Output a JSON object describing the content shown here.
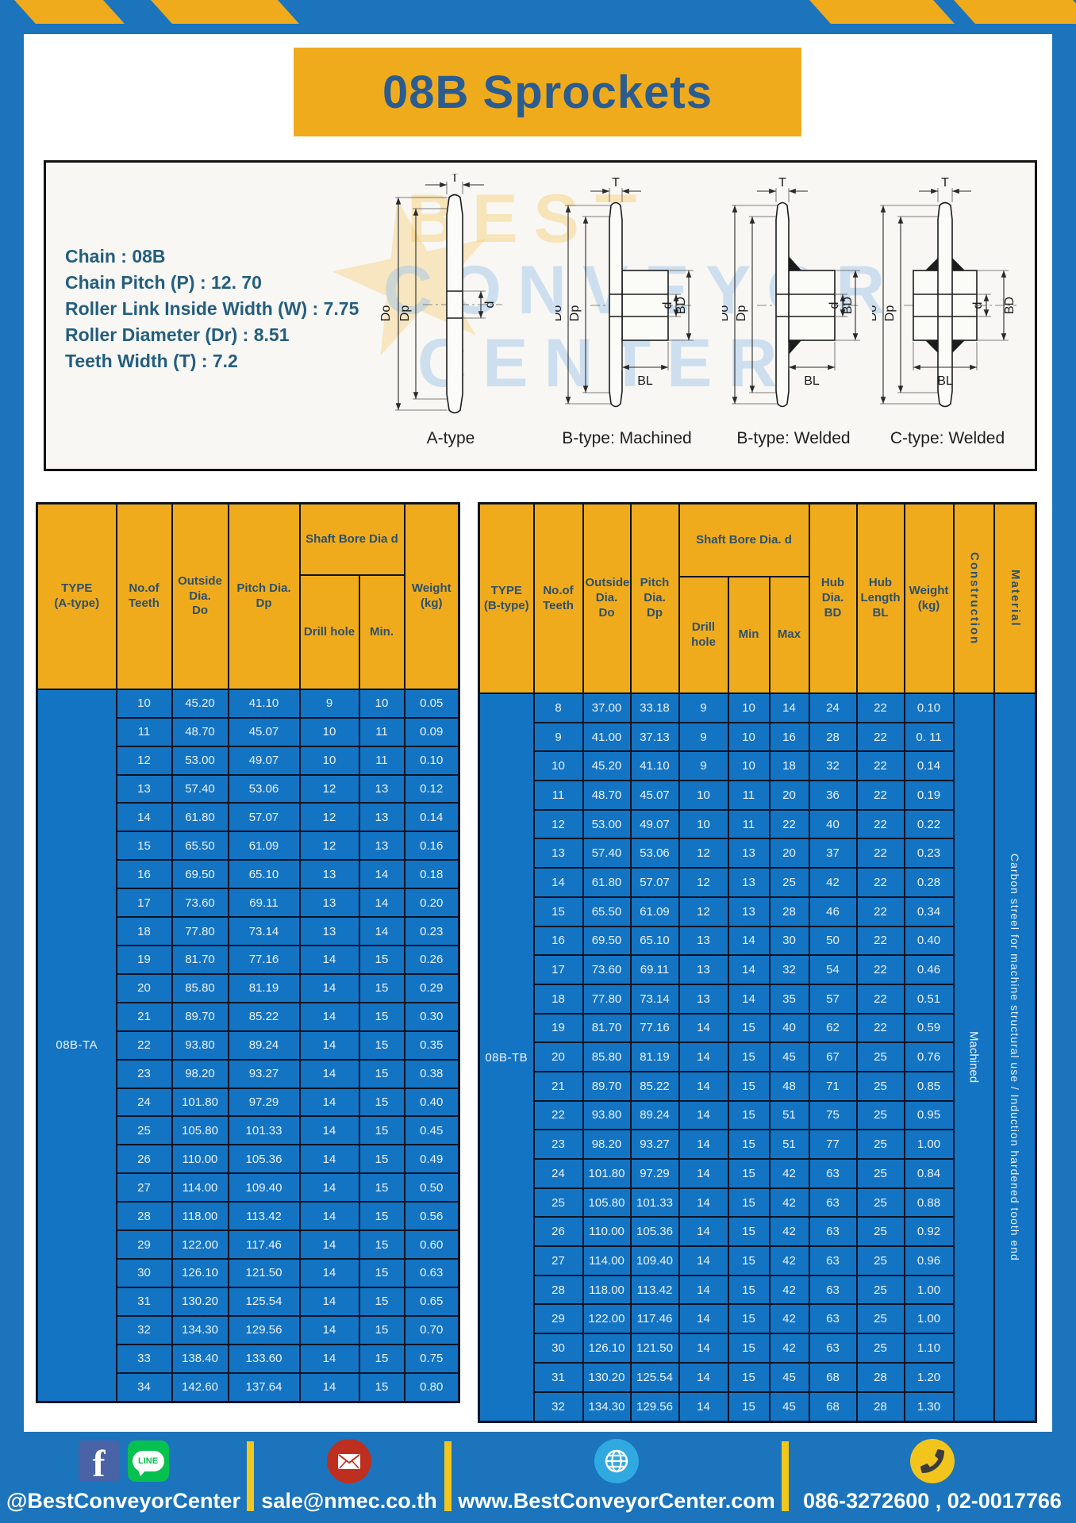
{
  "page": {
    "title": "08B Sprockets"
  },
  "specs": {
    "lines": [
      "Chain  : 08B",
      "Chain Pitch (P)  :  12. 70",
      "Roller Link Inside Width (W)  :  7.75",
      "Roller Diameter (Dr)  : 8.51",
      "Teeth Width (T)  :  7.2"
    ]
  },
  "diagram": {
    "watermark": [
      "BEST",
      "CONVEYOR",
      "CENTER"
    ],
    "watermark_star": "★",
    "types": [
      {
        "label": "A-type"
      },
      {
        "label": "B-type: Machined"
      },
      {
        "label": "B-type: Welded"
      },
      {
        "label": "C-type: Welded"
      }
    ],
    "dims": {
      "T": "T",
      "Do": "Do",
      "Dp": "Dp",
      "d": "d",
      "BD": "BD",
      "BL": "BL"
    }
  },
  "table_a": {
    "type_label": "08B-TA",
    "headers": {
      "type": "TYPE\n(A-type)",
      "teeth": "No.of\nTeeth",
      "outside": "Outside\nDia.\nDo",
      "pitch": "Pitch Dia.\nDp",
      "shaft_bore": "Shaft Bore Dia d",
      "drill": "Drill hole",
      "min": "Min.",
      "weight": "Weight\n(kg)"
    },
    "rows": [
      [
        "10",
        "45.20",
        "41.10",
        "9",
        "10",
        "0.05"
      ],
      [
        "11",
        "48.70",
        "45.07",
        "10",
        "11",
        "0.09"
      ],
      [
        "12",
        "53.00",
        "49.07",
        "10",
        "11",
        "0.10"
      ],
      [
        "13",
        "57.40",
        "53.06",
        "12",
        "13",
        "0.12"
      ],
      [
        "14",
        "61.80",
        "57.07",
        "12",
        "13",
        "0.14"
      ],
      [
        "15",
        "65.50",
        "61.09",
        "12",
        "13",
        "0.16"
      ],
      [
        "16",
        "69.50",
        "65.10",
        "13",
        "14",
        "0.18"
      ],
      [
        "17",
        "73.60",
        "69.11",
        "13",
        "14",
        "0.20"
      ],
      [
        "18",
        "77.80",
        "73.14",
        "13",
        "14",
        "0.23"
      ],
      [
        "19",
        "81.70",
        "77.16",
        "14",
        "15",
        "0.26"
      ],
      [
        "20",
        "85.80",
        "81.19",
        "14",
        "15",
        "0.29"
      ],
      [
        "21",
        "89.70",
        "85.22",
        "14",
        "15",
        "0.30"
      ],
      [
        "22",
        "93.80",
        "89.24",
        "14",
        "15",
        "0.35"
      ],
      [
        "23",
        "98.20",
        "93.27",
        "14",
        "15",
        "0.38"
      ],
      [
        "24",
        "101.80",
        "97.29",
        "14",
        "15",
        "0.40"
      ],
      [
        "25",
        "105.80",
        "101.33",
        "14",
        "15",
        "0.45"
      ],
      [
        "26",
        "110.00",
        "105.36",
        "14",
        "15",
        "0.49"
      ],
      [
        "27",
        "114.00",
        "109.40",
        "14",
        "15",
        "0.50"
      ],
      [
        "28",
        "118.00",
        "113.42",
        "14",
        "15",
        "0.56"
      ],
      [
        "29",
        "122.00",
        "117.46",
        "14",
        "15",
        "0.60"
      ],
      [
        "30",
        "126.10",
        "121.50",
        "14",
        "15",
        "0.63"
      ],
      [
        "31",
        "130.20",
        "125.54",
        "14",
        "15",
        "0.65"
      ],
      [
        "32",
        "134.30",
        "129.56",
        "14",
        "15",
        "0.70"
      ],
      [
        "33",
        "138.40",
        "133.60",
        "14",
        "15",
        "0.75"
      ],
      [
        "34",
        "142.60",
        "137.64",
        "14",
        "15",
        "0.80"
      ]
    ]
  },
  "table_b": {
    "type_label": "08B-TB",
    "headers": {
      "type": "TYPE\n(B-type)",
      "teeth": "No.of\nTeeth",
      "outside": "Outside\nDia.\nDo",
      "pitch": "Pitch\nDia.\nDp",
      "shaft_bore": "Shaft Bore Dia.  d",
      "drill": "Drill hole",
      "min": "Min",
      "max": "Max",
      "hub_dia": "Hub\nDia.\nBD",
      "hub_len": "Hub\nLength\nBL",
      "weight": "Weight\n(kg)",
      "construction": "Construction",
      "material": "Material"
    },
    "construction_value": "Machined",
    "material_value": "Carbon streel for machine structural use / Induction hardened tooth end",
    "rows": [
      [
        "8",
        "37.00",
        "33.18",
        "9",
        "10",
        "14",
        "24",
        "22",
        "0.10"
      ],
      [
        "9",
        "41.00",
        "37.13",
        "9",
        "10",
        "16",
        "28",
        "22",
        "0. 11"
      ],
      [
        "10",
        "45.20",
        "41.10",
        "9",
        "10",
        "18",
        "32",
        "22",
        "0.14"
      ],
      [
        "11",
        "48.70",
        "45.07",
        "10",
        "11",
        "20",
        "36",
        "22",
        "0.19"
      ],
      [
        "12",
        "53.00",
        "49.07",
        "10",
        "11",
        "22",
        "40",
        "22",
        "0.22"
      ],
      [
        "13",
        "57.40",
        "53.06",
        "12",
        "13",
        "20",
        "37",
        "22",
        "0.23"
      ],
      [
        "14",
        "61.80",
        "57.07",
        "12",
        "13",
        "25",
        "42",
        "22",
        "0.28"
      ],
      [
        "15",
        "65.50",
        "61.09",
        "12",
        "13",
        "28",
        "46",
        "22",
        "0.34"
      ],
      [
        "16",
        "69.50",
        "65.10",
        "13",
        "14",
        "30",
        "50",
        "22",
        "0.40"
      ],
      [
        "17",
        "73.60",
        "69.11",
        "13",
        "14",
        "32",
        "54",
        "22",
        "0.46"
      ],
      [
        "18",
        "77.80",
        "73.14",
        "13",
        "14",
        "35",
        "57",
        "22",
        "0.51"
      ],
      [
        "19",
        "81.70",
        "77.16",
        "14",
        "15",
        "40",
        "62",
        "22",
        "0.59"
      ],
      [
        "20",
        "85.80",
        "81.19",
        "14",
        "15",
        "45",
        "67",
        "25",
        "0.76"
      ],
      [
        "21",
        "89.70",
        "85.22",
        "14",
        "15",
        "48",
        "71",
        "25",
        "0.85"
      ],
      [
        "22",
        "93.80",
        "89.24",
        "14",
        "15",
        "51",
        "75",
        "25",
        "0.95"
      ],
      [
        "23",
        "98.20",
        "93.27",
        "14",
        "15",
        "51",
        "77",
        "25",
        "1.00"
      ],
      [
        "24",
        "101.80",
        "97.29",
        "14",
        "15",
        "42",
        "63",
        "25",
        "0.84"
      ],
      [
        "25",
        "105.80",
        "101.33",
        "14",
        "15",
        "42",
        "63",
        "25",
        "0.88"
      ],
      [
        "26",
        "110.00",
        "105.36",
        "14",
        "15",
        "42",
        "63",
        "25",
        "0.92"
      ],
      [
        "27",
        "114.00",
        "109.40",
        "14",
        "15",
        "42",
        "63",
        "25",
        "0.96"
      ],
      [
        "28",
        "118.00",
        "113.42",
        "14",
        "15",
        "42",
        "63",
        "25",
        "1.00"
      ],
      [
        "29",
        "122.00",
        "117.46",
        "14",
        "15",
        "42",
        "63",
        "25",
        "1.00"
      ],
      [
        "30",
        "126.10",
        "121.50",
        "14",
        "15",
        "42",
        "63",
        "25",
        "1.10"
      ],
      [
        "31",
        "130.20",
        "125.54",
        "14",
        "15",
        "45",
        "68",
        "28",
        "1.20"
      ],
      [
        "32",
        "134.30",
        "129.56",
        "14",
        "15",
        "45",
        "68",
        "28",
        "1.30"
      ]
    ]
  },
  "footer": {
    "sections": [
      {
        "text": "@BestConveyorCenter"
      },
      {
        "text": "sale@nmec.co.th"
      },
      {
        "text": "www.BestConveyorCenter.com"
      },
      {
        "text": "086-3272600 , 02-0017766"
      }
    ],
    "line_label": "LINE",
    "fb_letter": "f"
  }
}
